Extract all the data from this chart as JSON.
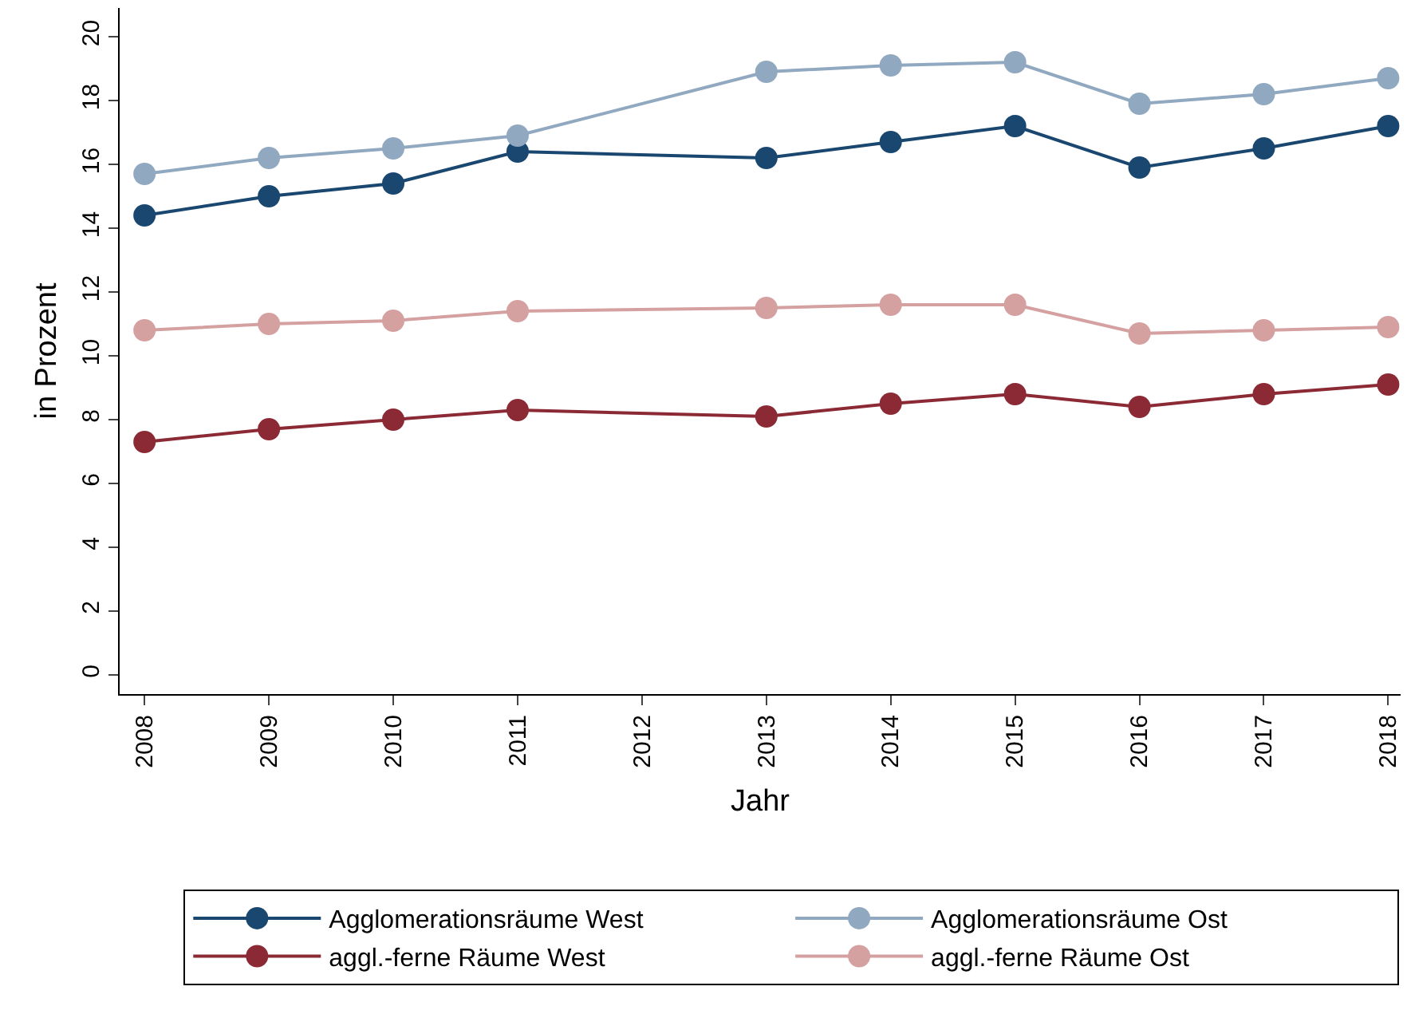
{
  "chart_data": {
    "type": "line",
    "xlabel": "Jahr",
    "ylabel": "in Prozent",
    "x": [
      2008,
      2009,
      2010,
      2011,
      2013,
      2014,
      2015,
      2016,
      2017,
      2018
    ],
    "series": [
      {
        "name": "Agglomerationsräume West",
        "color": "#1a476f",
        "values": [
          14.4,
          15.0,
          15.4,
          16.4,
          16.2,
          16.7,
          17.2,
          15.9,
          16.5,
          17.2
        ]
      },
      {
        "name": "Agglomerationsräume Ost",
        "color": "#90a8c0",
        "values": [
          15.7,
          16.2,
          16.5,
          16.9,
          18.9,
          19.1,
          19.2,
          17.9,
          18.2,
          18.7
        ]
      },
      {
        "name": "aggl.-ferne Räume West",
        "color": "#8b2a35",
        "values": [
          7.3,
          7.7,
          8.0,
          8.3,
          8.1,
          8.5,
          8.8,
          8.4,
          8.8,
          9.1
        ]
      },
      {
        "name": "aggl.-ferne Räume Ost",
        "color": "#d4a0a0",
        "values": [
          10.8,
          11.0,
          11.1,
          11.4,
          11.5,
          11.6,
          11.6,
          10.7,
          10.8,
          10.9
        ]
      }
    ],
    "xlim": [
      2007.8,
      2018.1
    ],
    "xticks": [
      2008,
      2009,
      2010,
      2011,
      2012,
      2013,
      2014,
      2015,
      2016,
      2017,
      2018
    ],
    "ylim": [
      -0.6,
      20.9
    ],
    "yticks": [
      0,
      2,
      4,
      6,
      8,
      10,
      12,
      14,
      16,
      18,
      20
    ],
    "grid": false,
    "legend": "bottom",
    "marker": "circle",
    "line_style": "solid"
  }
}
